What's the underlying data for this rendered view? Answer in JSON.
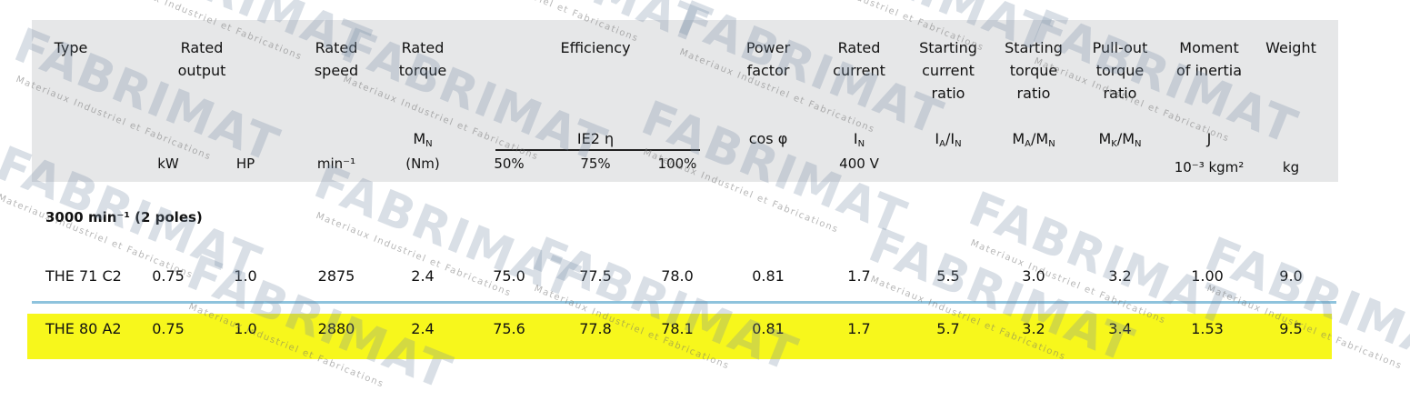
{
  "header": {
    "titles": [
      "Type",
      "Rated\noutput",
      "Rated\nspeed",
      "Rated\ntorque",
      "Efficiency",
      "Power\nfactor",
      "Rated\ncurrent",
      "Starting\ncurrent\nratio",
      "Starting\ntorque\nratio",
      "Pull-out\ntorque\nratio",
      "Moment\nof inertia",
      "Weight"
    ],
    "symbols": [
      [
        "M",
        "N"
      ],
      [
        "IE2 η"
      ],
      [
        "cos φ"
      ],
      [
        "I",
        "N"
      ],
      [
        "I",
        "A",
        "/I",
        "N"
      ],
      [
        "M",
        "A",
        "/M",
        "N"
      ],
      [
        "M",
        "K",
        "/M",
        "N"
      ],
      [
        "J"
      ]
    ],
    "units": [
      "kW",
      "HP",
      "min⁻¹",
      "(Nm)",
      "50%",
      "75%",
      "100%",
      "400 V",
      "10⁻³ kgm²",
      "kg"
    ]
  },
  "table": {
    "section": "3000 min⁻¹ (2 poles)",
    "rows": [
      [
        "THE 71 C2",
        "0.75",
        "1.0",
        "2875",
        "2.4",
        "75.0",
        "77.5",
        "78.0",
        "0.81",
        "1.7",
        "5.5",
        "3.0",
        "3.2",
        "1.00",
        "9.0"
      ],
      [
        "THE 80 A2",
        "0.75",
        "1.0",
        "2880",
        "2.4",
        "75.6",
        "77.8",
        "78.1",
        "0.81",
        "1.7",
        "5.7",
        "3.2",
        "3.4",
        "1.53",
        "9.5"
      ]
    ]
  },
  "watermark": {
    "logo": "FABRIMAT",
    "tagline": "Materiaux Industriel et Fabrications"
  }
}
